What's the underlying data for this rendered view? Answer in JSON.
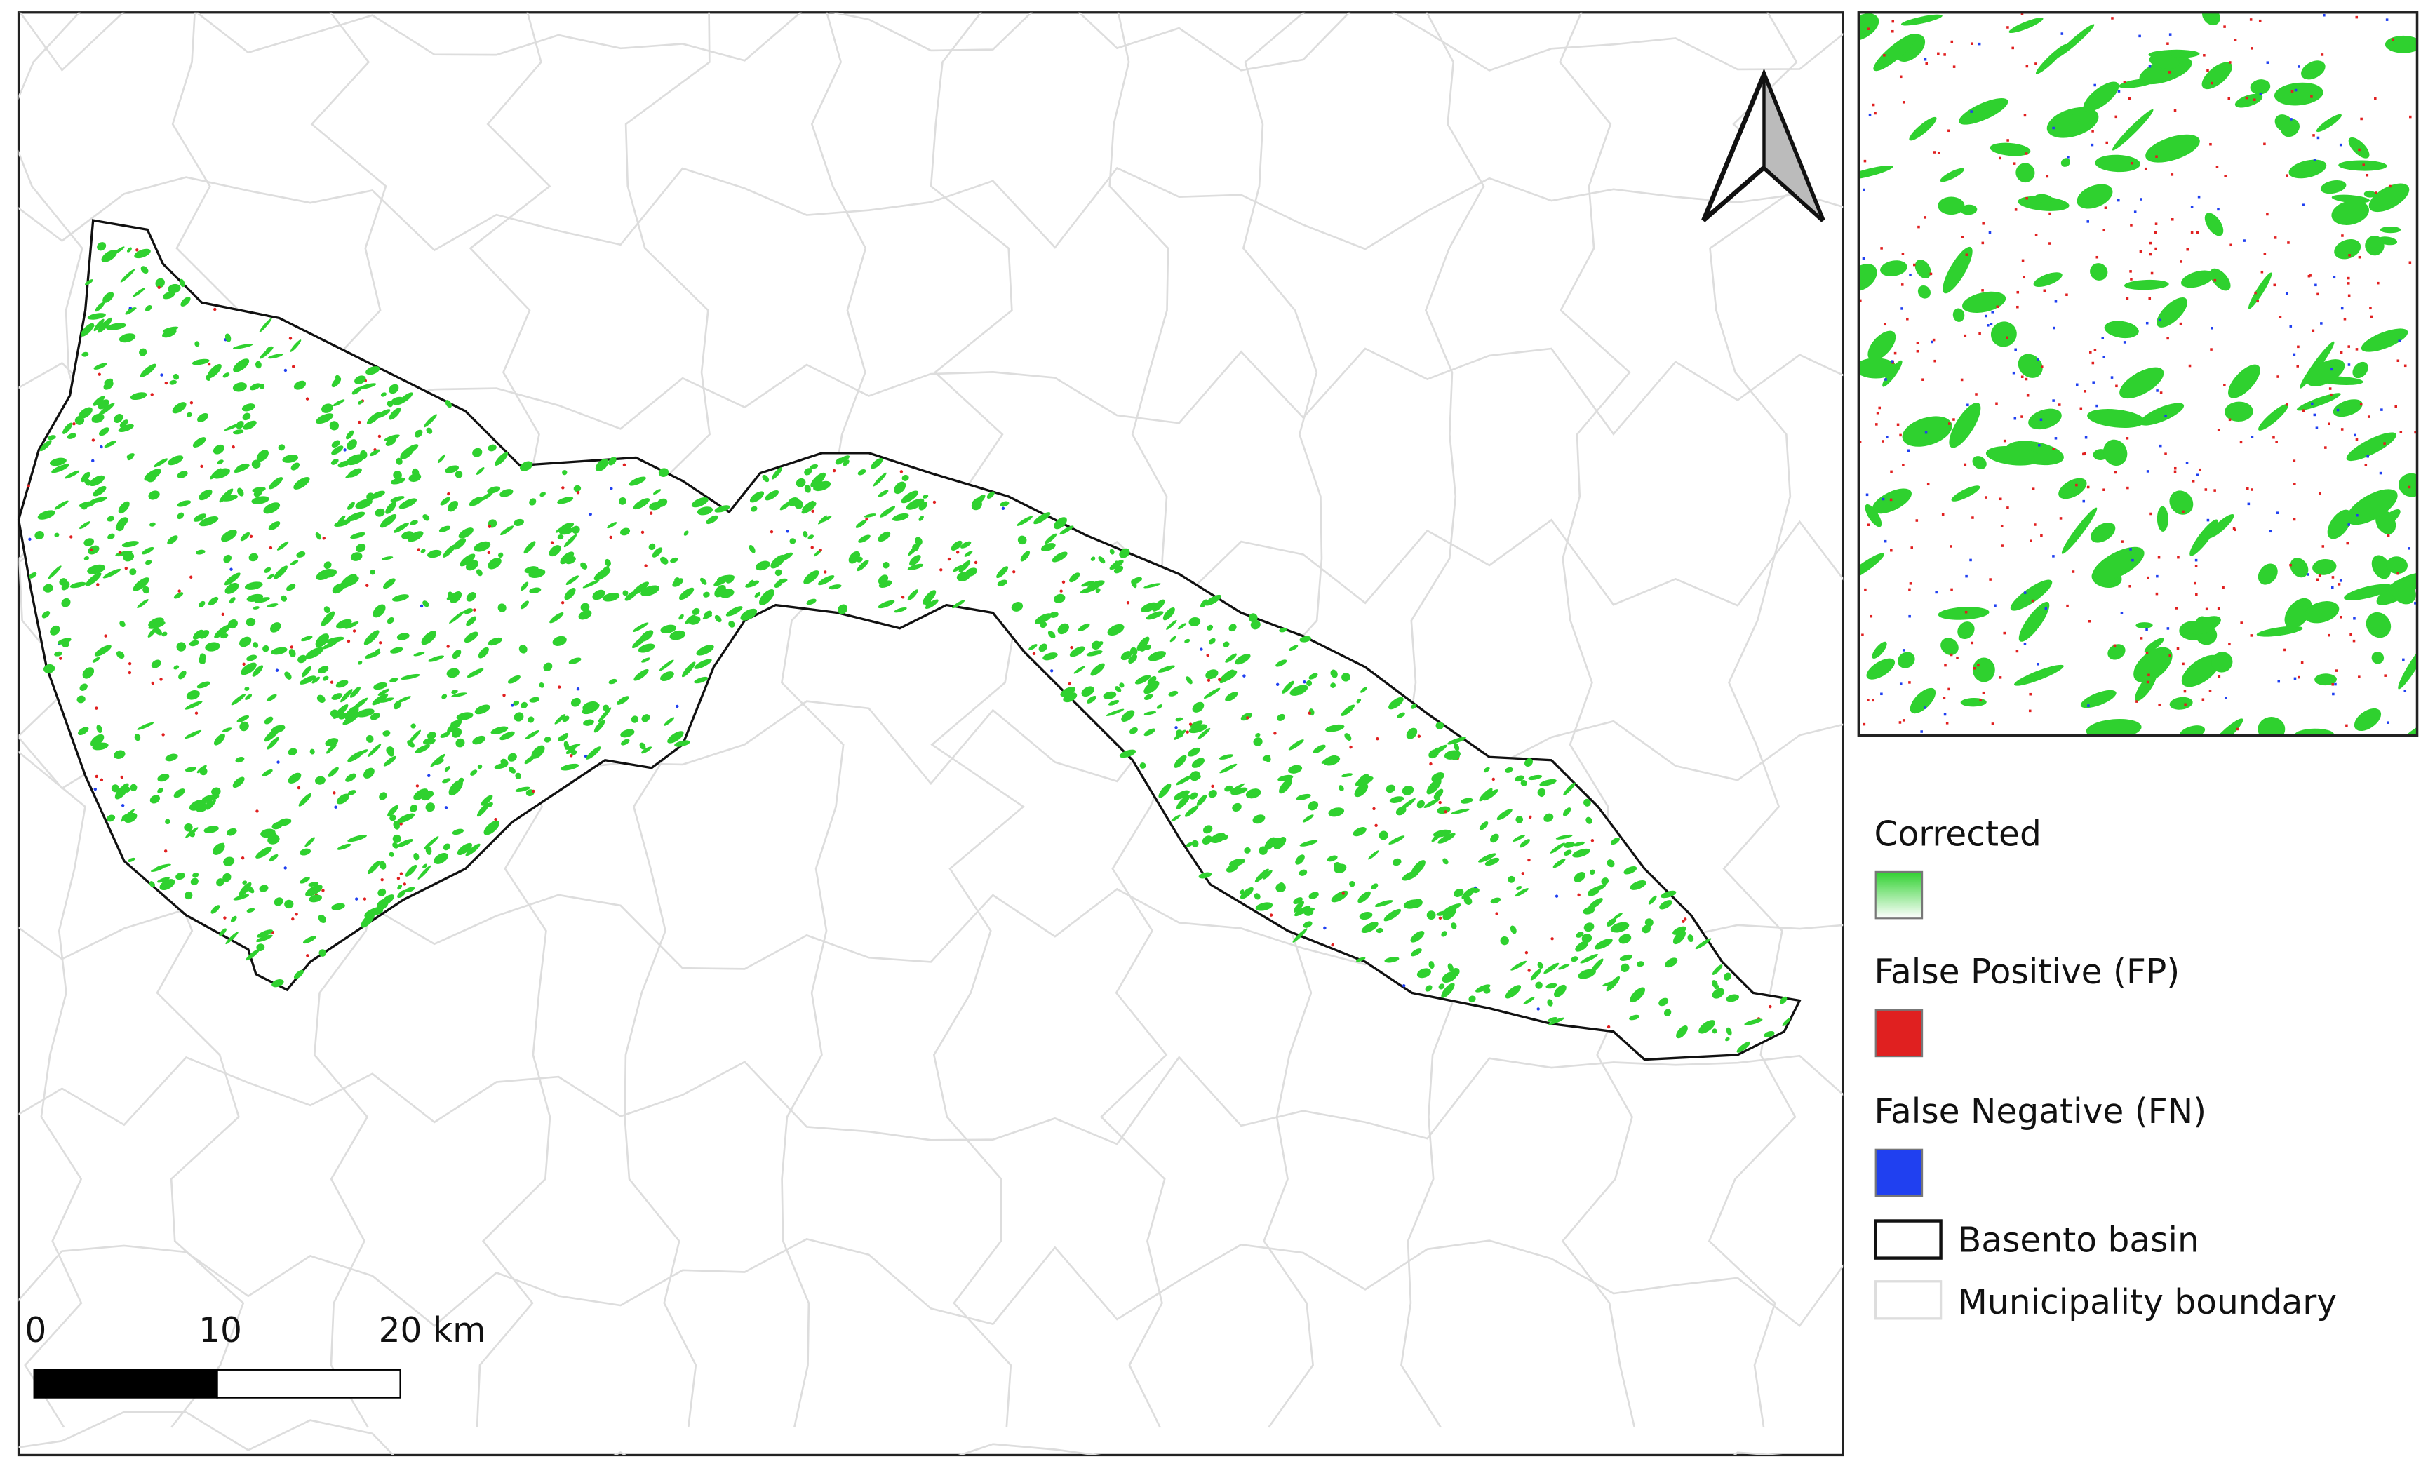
{
  "legend": {
    "items": [
      {
        "label": "Corrected",
        "color": "#2fd12f"
      },
      {
        "label": "False Positive (FP)",
        "color": "#e02020"
      },
      {
        "label": "False Negative (FN)",
        "color": "#2040f0"
      },
      {
        "label": "Basento basin",
        "color": "#111111"
      },
      {
        "label": "Municipality boundary",
        "color": "#dddddd"
      }
    ]
  },
  "scale_bar": {
    "labels": [
      "0",
      "10",
      "20 km"
    ]
  }
}
